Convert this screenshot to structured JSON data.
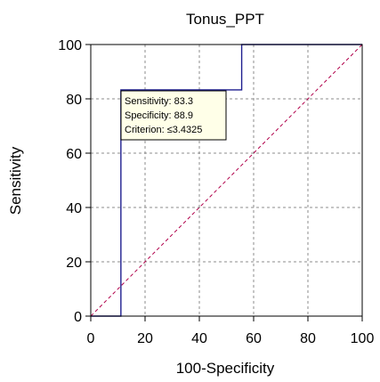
{
  "chart_data": {
    "type": "line",
    "title": "Tonus_PPT",
    "xlabel": "100-Specificity",
    "ylabel": "Sensitivity",
    "xlim": [
      0,
      100
    ],
    "ylim": [
      0,
      100
    ],
    "xticks": [
      0,
      20,
      40,
      60,
      80,
      100
    ],
    "yticks": [
      0,
      20,
      40,
      60,
      80,
      100
    ],
    "grid": true,
    "series": [
      {
        "x": [
          0,
          11.1,
          11.1,
          55.6,
          55.6,
          100
        ],
        "y": [
          0,
          0,
          83.3,
          83.3,
          100,
          100
        ],
        "color": "#1f1f8f",
        "style": "step"
      },
      {
        "x": [
          0,
          100
        ],
        "y": [
          0,
          100
        ],
        "color": "#b0004a",
        "style": "dashed"
      }
    ],
    "annotation": {
      "lines": [
        "Sensitivity: 83.3",
        "Specificity: 88.9",
        "Criterion: ≤3.4325"
      ]
    }
  }
}
